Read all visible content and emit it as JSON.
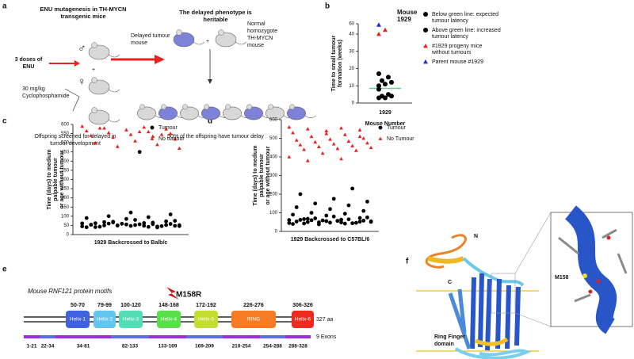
{
  "panel_labels": [
    "a",
    "b",
    "c",
    "d",
    "e",
    "f"
  ],
  "panel_a": {
    "title": [
      "ENU mutagenesis in TH-MYCN",
      "transgenic mice"
    ],
    "doses": [
      "3 doses of",
      "ENU"
    ],
    "male": "♂",
    "female": "♀",
    "plus": "+",
    "cyclophosphamide": [
      "30 mg/kg",
      "Cyclophosphamide"
    ],
    "screen": [
      "Offspring screened for delayed in",
      "tumour development"
    ],
    "heritable": [
      "The delayed phenotype is",
      "heritable"
    ],
    "delayed": [
      "Delayed tumour",
      "mouse"
    ],
    "normal": [
      "Normal",
      "homozygote",
      "TH-MYCN",
      "mouse"
    ],
    "offspring": "50% of the offspring have tumour delay"
  },
  "chart_data": [
    {
      "type": "scatter",
      "broken_axis": true,
      "y_label": [
        "Time to small tumour",
        "formation (weeks)"
      ],
      "x_label": "Mouse Number",
      "categories": [
        "1929"
      ],
      "annotation": [
        "Mouse",
        "1929"
      ],
      "ylim": [
        0,
        60
      ],
      "yticks": [
        0,
        10,
        20,
        30,
        40,
        60
      ],
      "reference_line": {
        "value": 8.5,
        "color": "#5ad38f"
      },
      "series": [
        {
          "name": [
            "Below green line: expected",
            "tumour latency"
          ],
          "color": "#000000",
          "marker": "circle",
          "values": [
            3,
            3,
            4,
            4,
            5,
            8
          ]
        },
        {
          "name": [
            "Above green line: increased",
            "tumour latency"
          ],
          "color": "#000000",
          "marker": "circle",
          "values": [
            10,
            11,
            12,
            13,
            15,
            17
          ]
        },
        {
          "name": [
            "#1929 progeny mice",
            "without tumours"
          ],
          "color": "#e8231f",
          "marker": "triangle",
          "values": [
            40,
            48
          ]
        },
        {
          "name": [
            "Parent mouse #1929"
          ],
          "color": "#2030c8",
          "marker": "triangle",
          "values": [
            58
          ]
        }
      ]
    },
    {
      "type": "scatter",
      "y_label": [
        "Time (days) to medium",
        "palpable tumour",
        "or age without tumour"
      ],
      "x_label": "1929 Backcrossed to Balb/c",
      "ylim": [
        0,
        600
      ],
      "yticks": [
        0,
        50,
        100,
        150,
        200,
        250,
        300,
        350,
        400,
        450,
        500,
        550,
        600
      ],
      "series": [
        {
          "name": [
            "Tumour"
          ],
          "color": "#000000",
          "marker": "circle",
          "values": [
            45,
            48,
            50,
            52,
            55,
            40,
            42,
            60,
            58,
            47,
            53,
            65,
            70,
            75,
            80,
            62,
            44,
            49,
            51,
            56,
            43,
            46,
            59,
            61,
            63,
            68,
            72,
            85,
            90,
            95,
            100,
            110,
            120,
            54,
            57,
            66,
            48,
            52,
            41,
            39,
            50,
            46,
            450
          ]
        },
        {
          "name": [
            "No tumour"
          ],
          "color": "#e8231f",
          "marker": "triangle",
          "values": [
            590,
            585,
            580,
            575,
            570,
            565,
            560,
            555,
            550,
            545,
            540,
            535,
            530,
            520,
            510,
            500,
            490,
            480,
            470,
            560,
            580,
            545
          ]
        }
      ]
    },
    {
      "type": "scatter",
      "y_label": [
        "Time (days) to medium",
        "palpable tumour",
        "or age without tumour"
      ],
      "x_label": "1929 Backcrossed to C57BL/6",
      "ylim": [
        0,
        600
      ],
      "yticks": [
        0,
        100,
        200,
        300,
        400,
        500,
        600
      ],
      "series": [
        {
          "name": [
            "Tumour"
          ],
          "color": "#000000",
          "marker": "circle",
          "values": [
            45,
            48,
            50,
            52,
            55,
            40,
            42,
            60,
            58,
            47,
            53,
            65,
            70,
            75,
            80,
            62,
            44,
            49,
            51,
            56,
            43,
            46,
            59,
            61,
            63,
            68,
            72,
            85,
            90,
            95,
            100,
            110,
            120,
            130,
            140,
            150,
            160,
            175,
            200,
            230,
            38,
            54,
            57,
            66
          ]
        },
        {
          "name": [
            "No Tumour"
          ],
          "color": "#e8231f",
          "marker": "triangle",
          "values": [
            560,
            555,
            550,
            545,
            540,
            530,
            520,
            510,
            500,
            495,
            490,
            485,
            480,
            475,
            470,
            465,
            460,
            455,
            450,
            445,
            440,
            435,
            420,
            400,
            390,
            380,
            510,
            525
          ]
        }
      ]
    }
  ],
  "panel_e": {
    "title": "Mouse RNF121 protein motifs",
    "mutation": "M158R",
    "length": "327 aa",
    "exon_count": "9 Exons",
    "motifs": [
      {
        "name": "Helix-1",
        "range": "50-70",
        "color": "#3f63e0"
      },
      {
        "name": "Helix-2",
        "range": "79-99",
        "color": "#62c6f0"
      },
      {
        "name": "Helix-3",
        "range": "100-120",
        "color": "#53dcb6"
      },
      {
        "name": "Helix-4",
        "range": "148-168",
        "color": "#57e04a"
      },
      {
        "name": "Helix-5",
        "range": "172-192",
        "color": "#c3de2e"
      },
      {
        "name": "RING",
        "range": "226-276",
        "color": "#f77b22"
      },
      {
        "name": "Helix-6",
        "range": "306-326",
        "color": "#ee2a1e"
      }
    ],
    "exons": [
      "1-21",
      "22-34",
      "34-81",
      "82-133",
      "133-169",
      "169-209",
      "210-254",
      "254-288",
      "288-328"
    ]
  },
  "panel_f": {
    "n_term": "N",
    "c_term": "C",
    "residue": "M158",
    "domain": [
      "Ring Finger",
      "domain"
    ]
  }
}
